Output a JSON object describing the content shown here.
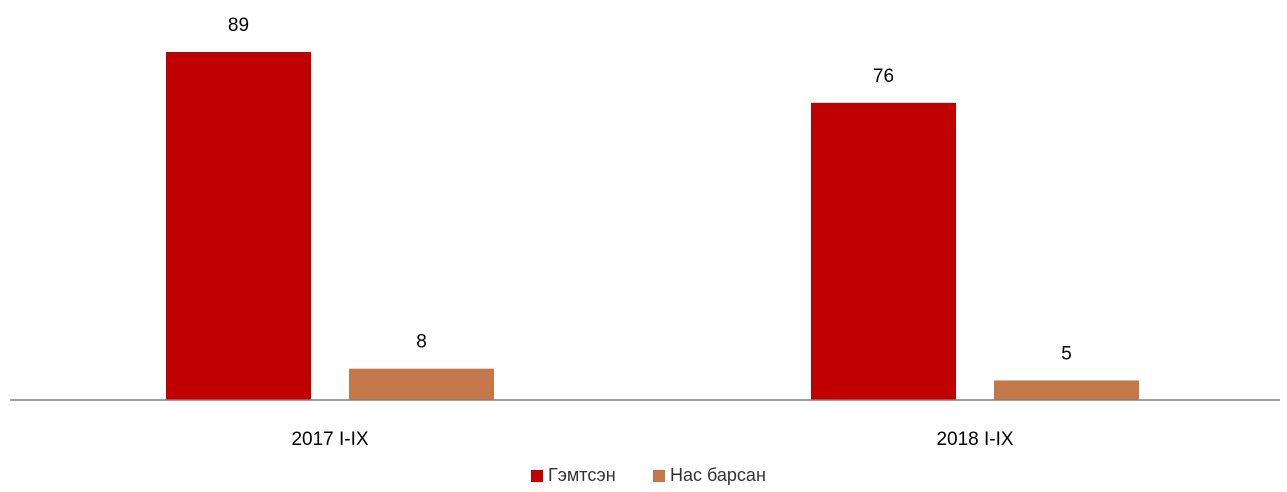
{
  "chart_data": {
    "type": "bar",
    "categories": [
      "2017 I-IX",
      "2018 I-IX"
    ],
    "series": [
      {
        "name": "Гэмтсэн",
        "values": [
          89,
          76
        ],
        "color": "#C00000"
      },
      {
        "name": "Нас барсан",
        "values": [
          8,
          5
        ],
        "color": "#C4784A"
      }
    ],
    "ylim": [
      0,
      89
    ],
    "data_labels": true,
    "gridlines": false,
    "legend_position": "bottom-center",
    "axis_color": "#808080"
  }
}
